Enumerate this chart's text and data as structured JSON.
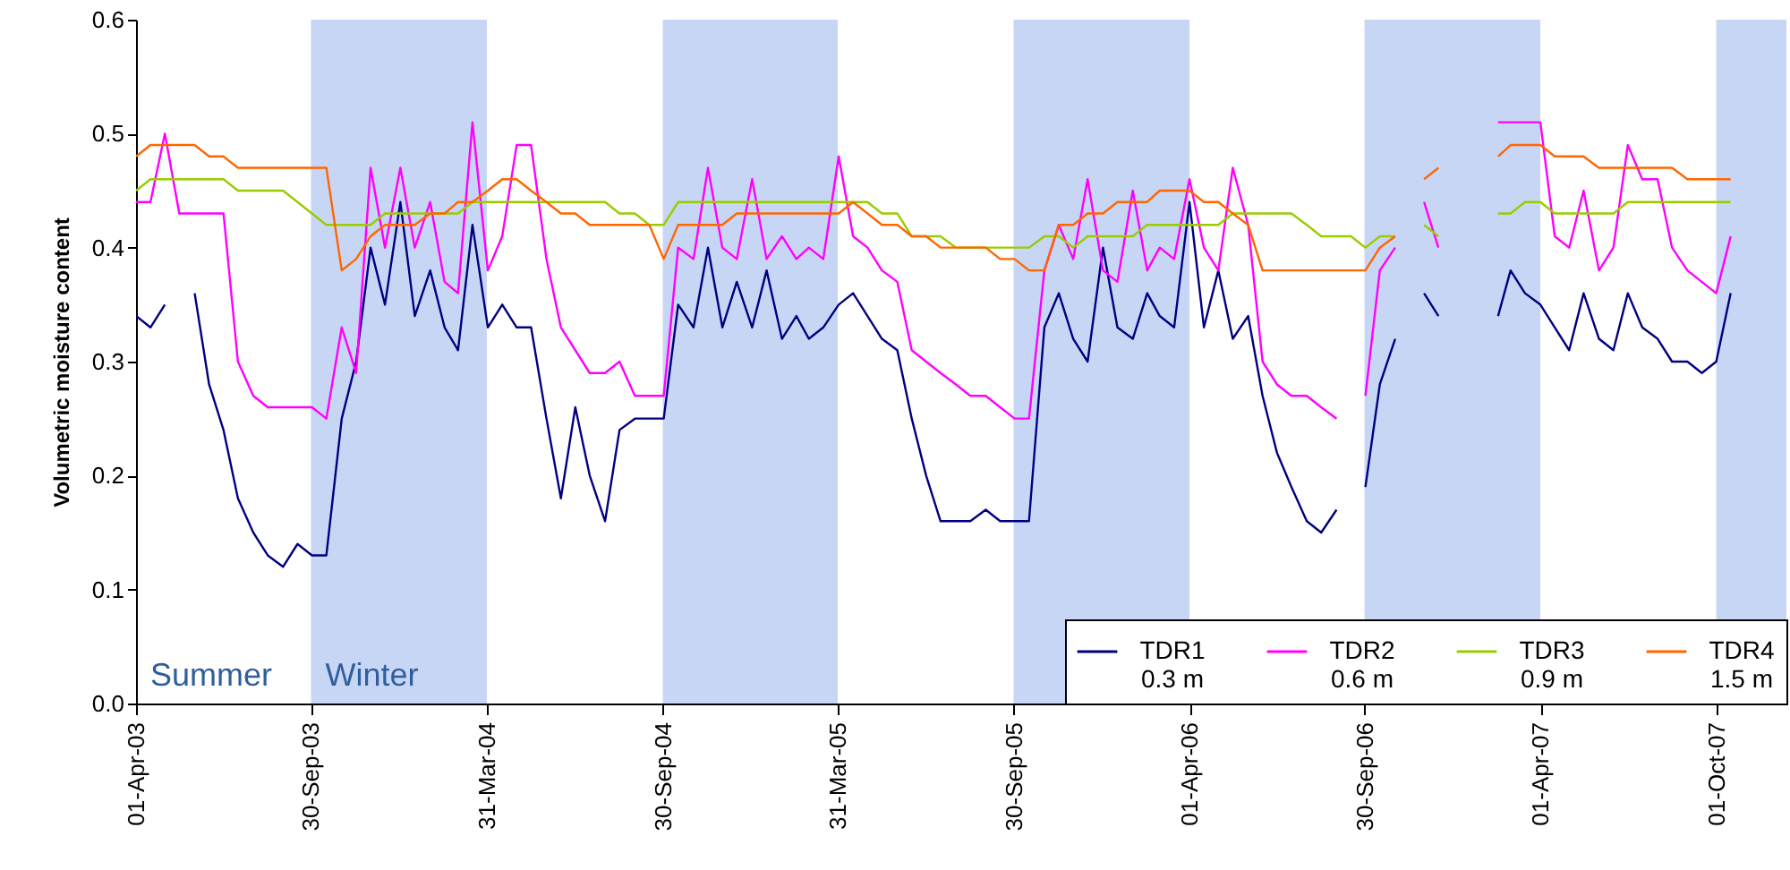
{
  "chart_data": {
    "type": "line",
    "ylabel": "Volumetric moisture content",
    "x": [
      "2003-04-01",
      "2003-04-16",
      "2003-05-01",
      "2003-05-16",
      "2003-06-01",
      "2003-06-16",
      "2003-07-01",
      "2003-07-16",
      "2003-08-01",
      "2003-08-16",
      "2003-09-01",
      "2003-09-16",
      "2003-10-01",
      "2003-10-16",
      "2003-11-01",
      "2003-11-16",
      "2003-12-01",
      "2003-12-16",
      "2004-01-01",
      "2004-01-16",
      "2004-02-01",
      "2004-02-16",
      "2004-03-01",
      "2004-03-16",
      "2004-04-01",
      "2004-04-16",
      "2004-05-01",
      "2004-05-16",
      "2004-06-01",
      "2004-06-16",
      "2004-07-01",
      "2004-07-16",
      "2004-08-01",
      "2004-08-16",
      "2004-09-01",
      "2004-09-16",
      "2004-10-01",
      "2004-10-16",
      "2004-11-01",
      "2004-11-16",
      "2004-12-01",
      "2004-12-16",
      "2005-01-01",
      "2005-01-16",
      "2005-02-01",
      "2005-02-16",
      "2005-03-01",
      "2005-03-16",
      "2005-04-01",
      "2005-04-16",
      "2005-05-01",
      "2005-05-16",
      "2005-06-01",
      "2005-06-16",
      "2005-07-01",
      "2005-07-16",
      "2005-08-01",
      "2005-08-16",
      "2005-09-01",
      "2005-09-16",
      "2005-10-01",
      "2005-10-16",
      "2005-11-01",
      "2005-11-16",
      "2005-12-01",
      "2005-12-16",
      "2006-01-01",
      "2006-01-16",
      "2006-02-01",
      "2006-02-16",
      "2006-03-01",
      "2006-03-16",
      "2006-04-01",
      "2006-04-16",
      "2006-05-01",
      "2006-05-16",
      "2006-06-01",
      "2006-06-16",
      "2006-07-01",
      "2006-07-16",
      "2006-08-01",
      "2006-08-16",
      "2006-09-01",
      "2006-09-16",
      "2006-10-01",
      "2006-10-16",
      "2006-11-01",
      "2006-11-16",
      "2006-12-01",
      "2006-12-16",
      "2007-01-01",
      "2007-01-16",
      "2007-02-01",
      "2007-02-16",
      "2007-03-01",
      "2007-03-16",
      "2007-04-01",
      "2007-04-16",
      "2007-05-01",
      "2007-05-16",
      "2007-06-01",
      "2007-06-16",
      "2007-07-01",
      "2007-07-16",
      "2007-08-01",
      "2007-08-16",
      "2007-09-01",
      "2007-09-16",
      "2007-10-01",
      "2007-10-16"
    ],
    "series": [
      {
        "name": "TDR1\n0.3 m",
        "color": "#000080",
        "values": [
          0.34,
          0.33,
          0.35,
          null,
          0.36,
          0.28,
          0.24,
          0.18,
          0.15,
          0.13,
          0.12,
          0.14,
          0.13,
          0.13,
          0.25,
          0.3,
          0.4,
          0.35,
          0.44,
          0.34,
          0.38,
          0.33,
          0.31,
          0.42,
          0.33,
          0.35,
          0.33,
          0.33,
          0.25,
          0.18,
          0.26,
          0.2,
          0.16,
          0.24,
          0.25,
          0.25,
          0.25,
          0.35,
          0.33,
          0.4,
          0.33,
          0.37,
          0.33,
          0.38,
          0.32,
          0.34,
          0.32,
          0.33,
          0.35,
          0.36,
          0.34,
          0.32,
          0.31,
          0.25,
          0.2,
          0.16,
          0.16,
          0.16,
          0.17,
          0.16,
          0.16,
          0.16,
          0.33,
          0.36,
          0.32,
          0.3,
          0.4,
          0.33,
          0.32,
          0.36,
          0.34,
          0.33,
          0.44,
          0.33,
          0.38,
          0.32,
          0.34,
          0.27,
          0.22,
          0.19,
          0.16,
          0.15,
          0.17,
          null,
          0.19,
          0.28,
          0.32,
          null,
          0.36,
          0.34,
          null,
          null,
          null,
          0.34,
          0.38,
          0.36,
          0.35,
          0.33,
          0.31,
          0.36,
          0.32,
          0.31,
          0.36,
          0.33,
          0.32,
          0.3,
          0.3,
          0.29,
          0.3,
          0.36
        ]
      },
      {
        "name": "TDR2\n0.6 m",
        "color": "#ff00ff",
        "values": [
          0.44,
          0.44,
          0.5,
          0.43,
          0.43,
          0.43,
          0.43,
          0.3,
          0.27,
          0.26,
          0.26,
          0.26,
          0.26,
          0.25,
          0.33,
          0.29,
          0.47,
          0.4,
          0.47,
          0.4,
          0.44,
          0.37,
          0.36,
          0.51,
          0.38,
          0.41,
          0.49,
          0.49,
          0.39,
          0.33,
          0.31,
          0.29,
          0.29,
          0.3,
          0.27,
          0.27,
          0.27,
          0.4,
          0.39,
          0.47,
          0.4,
          0.39,
          0.46,
          0.39,
          0.41,
          0.39,
          0.4,
          0.39,
          0.48,
          0.41,
          0.4,
          0.38,
          0.37,
          0.31,
          0.3,
          0.29,
          0.28,
          0.27,
          0.27,
          0.26,
          0.25,
          0.25,
          0.38,
          0.42,
          0.39,
          0.46,
          0.38,
          0.37,
          0.45,
          0.38,
          0.4,
          0.39,
          0.46,
          0.4,
          0.38,
          0.47,
          0.42,
          0.3,
          0.28,
          0.27,
          0.27,
          0.26,
          0.25,
          null,
          0.27,
          0.38,
          0.4,
          null,
          0.44,
          0.4,
          null,
          null,
          null,
          0.51,
          0.51,
          0.51,
          0.51,
          0.41,
          0.4,
          0.45,
          0.38,
          0.4,
          0.49,
          0.46,
          0.46,
          0.4,
          0.38,
          0.37,
          0.36,
          0.41
        ]
      },
      {
        "name": "TDR3\n0.9 m",
        "color": "#99cc00",
        "values": [
          0.45,
          0.46,
          0.46,
          0.46,
          0.46,
          0.46,
          0.46,
          0.45,
          0.45,
          0.45,
          0.45,
          0.44,
          0.43,
          0.42,
          0.42,
          0.42,
          0.42,
          0.43,
          0.43,
          0.43,
          0.43,
          0.43,
          0.43,
          0.44,
          0.44,
          0.44,
          0.44,
          0.44,
          0.44,
          0.44,
          0.44,
          0.44,
          0.44,
          0.43,
          0.43,
          0.42,
          0.42,
          0.44,
          0.44,
          0.44,
          0.44,
          0.44,
          0.44,
          0.44,
          0.44,
          0.44,
          0.44,
          0.44,
          0.44,
          0.44,
          0.44,
          0.43,
          0.43,
          0.41,
          0.41,
          0.41,
          0.4,
          0.4,
          0.4,
          0.4,
          0.4,
          0.4,
          0.41,
          0.41,
          0.4,
          0.41,
          0.41,
          0.41,
          0.41,
          0.42,
          0.42,
          0.42,
          0.42,
          0.42,
          0.42,
          0.43,
          0.43,
          0.43,
          0.43,
          0.43,
          0.42,
          0.41,
          0.41,
          0.41,
          0.4,
          0.41,
          0.41,
          null,
          0.42,
          0.41,
          null,
          null,
          null,
          0.43,
          0.43,
          0.44,
          0.44,
          0.43,
          0.43,
          0.43,
          0.43,
          0.43,
          0.44,
          0.44,
          0.44,
          0.44,
          0.44,
          0.44,
          0.44,
          0.44
        ]
      },
      {
        "name": "TDR4\n1.5 m",
        "color": "#ff6600",
        "values": [
          0.48,
          0.49,
          0.49,
          0.49,
          0.49,
          0.48,
          0.48,
          0.47,
          0.47,
          0.47,
          0.47,
          0.47,
          0.47,
          0.47,
          0.38,
          0.39,
          0.41,
          0.42,
          0.42,
          0.42,
          0.43,
          0.43,
          0.44,
          0.44,
          0.45,
          0.46,
          0.46,
          0.45,
          0.44,
          0.43,
          0.43,
          0.42,
          0.42,
          0.42,
          0.42,
          0.42,
          0.39,
          0.42,
          0.42,
          0.42,
          0.42,
          0.43,
          0.43,
          0.43,
          0.43,
          0.43,
          0.43,
          0.43,
          0.43,
          0.44,
          0.43,
          0.42,
          0.42,
          0.41,
          0.41,
          0.4,
          0.4,
          0.4,
          0.4,
          0.39,
          0.39,
          0.38,
          0.38,
          0.42,
          0.42,
          0.43,
          0.43,
          0.44,
          0.44,
          0.44,
          0.45,
          0.45,
          0.45,
          0.44,
          0.44,
          0.43,
          0.42,
          0.38,
          0.38,
          0.38,
          0.38,
          0.38,
          0.38,
          0.38,
          0.38,
          0.4,
          0.41,
          null,
          0.46,
          0.47,
          null,
          null,
          null,
          0.48,
          0.49,
          0.49,
          0.49,
          0.48,
          0.48,
          0.48,
          0.47,
          0.47,
          0.47,
          0.47,
          0.47,
          0.47,
          0.46,
          0.46,
          0.46,
          0.46
        ]
      }
    ],
    "xlim": [
      "2003-04-01",
      "2007-12-13"
    ],
    "xticks": [
      {
        "value": "2003-04-01",
        "label": "01-Apr-03"
      },
      {
        "value": "2003-09-30",
        "label": "30-Sep-03"
      },
      {
        "value": "2004-03-31",
        "label": "31-Mar-04"
      },
      {
        "value": "2004-09-30",
        "label": "30-Sep-04"
      },
      {
        "value": "2005-03-31",
        "label": "31-Mar-05"
      },
      {
        "value": "2005-09-30",
        "label": "30-Sep-05"
      },
      {
        "value": "2006-04-01",
        "label": "01-Apr-06"
      },
      {
        "value": "2006-09-30",
        "label": "30-Sep-06"
      },
      {
        "value": "2007-04-01",
        "label": "01-Apr-07"
      },
      {
        "value": "2007-10-01",
        "label": "01-Oct-07"
      }
    ],
    "ylim": [
      0,
      0.6
    ],
    "yticks": [
      {
        "value": 0,
        "label": "0.0"
      },
      {
        "value": 0.1,
        "label": "0.1"
      },
      {
        "value": 0.2,
        "label": "0.2"
      },
      {
        "value": 0.3,
        "label": "0.3"
      },
      {
        "value": 0.4,
        "label": "0.4"
      },
      {
        "value": 0.5,
        "label": "0.5"
      },
      {
        "value": 0.6,
        "label": "0.6"
      }
    ],
    "bands": [
      {
        "axis": "x",
        "from": "2003-09-30",
        "to": "2004-03-31",
        "color": "#c8d6f6"
      },
      {
        "axis": "x",
        "from": "2004-09-30",
        "to": "2005-03-31",
        "color": "#c8d6f6"
      },
      {
        "axis": "x",
        "from": "2005-09-30",
        "to": "2006-04-01",
        "color": "#c8d6f6"
      },
      {
        "axis": "x",
        "from": "2006-09-30",
        "to": "2007-04-01",
        "color": "#c8d6f6"
      },
      {
        "axis": "x",
        "from": "2007-10-01",
        "to": "2007-12-13",
        "color": "#c8d6f6"
      }
    ],
    "annotations": [
      "Summer",
      "Winter"
    ],
    "grid": false,
    "legend": "bottom right"
  }
}
